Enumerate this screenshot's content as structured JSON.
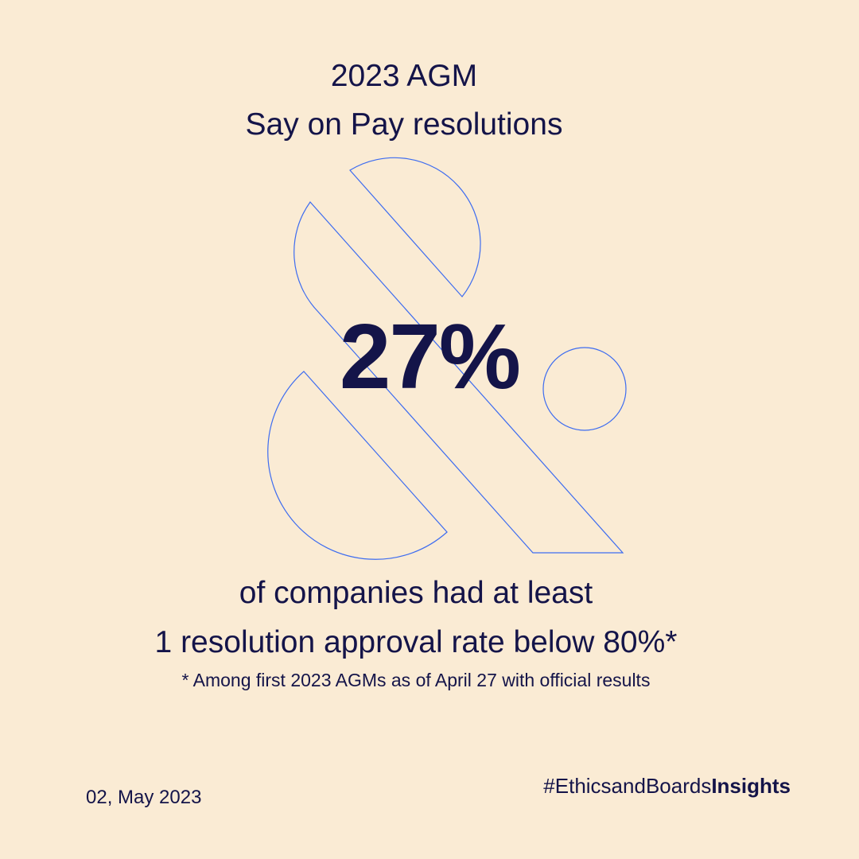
{
  "colors": {
    "background": "#FAEBD4",
    "text": "#141449",
    "outline_shapes": "#3D6CF0"
  },
  "header": {
    "title_line_1": "2023 AGM",
    "title_line_2": "Say on Pay resolutions"
  },
  "stat": {
    "value": "27%"
  },
  "caption": {
    "line_1": "of companies had at least",
    "line_2": "1 resolution approval rate below 80%*",
    "footnote": "* Among first 2023 AGMs as of April 27 with official results"
  },
  "footer": {
    "date": "02, May 2023",
    "hashtag_regular": "#EthicsandBoards",
    "hashtag_bold": "Insights"
  }
}
